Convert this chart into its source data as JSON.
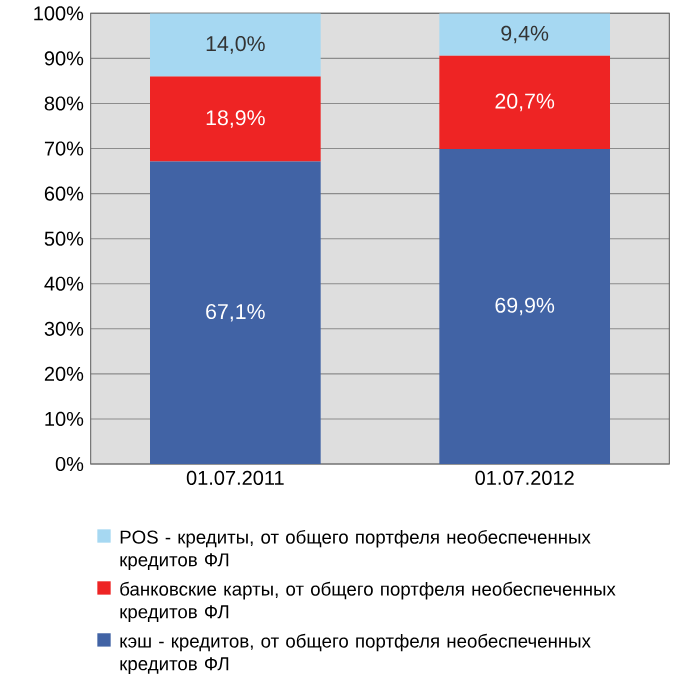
{
  "chart_data": {
    "type": "bar",
    "stacked": true,
    "categories": [
      "01.07.2011",
      "01.07.2012"
    ],
    "series": [
      {
        "name": "кэш - кредитов, от общего портфеля необеспеченных кредитов ФЛ",
        "color": "#4163a5",
        "values": [
          67.1,
          69.9
        ],
        "value_labels": [
          "67,1%",
          "69,9%"
        ]
      },
      {
        "name": "банковские карты, от общего портфеля необеспеченных кредитов ФЛ",
        "color": "#ee2424",
        "values": [
          18.9,
          20.7
        ],
        "value_labels": [
          "18,9%",
          "20,7%"
        ]
      },
      {
        "name": "POS - кредиты, от общего портфеля необеспеченных кредитов ФЛ",
        "color": "#a6d8f2",
        "values": [
          14.0,
          9.4
        ],
        "value_labels": [
          "14,0%",
          "9,4%"
        ]
      }
    ],
    "ylim": [
      0,
      100
    ],
    "yticks": [
      {
        "value": 0,
        "label": "0%"
      },
      {
        "value": 10,
        "label": "10%"
      },
      {
        "value": 20,
        "label": "20%"
      },
      {
        "value": 30,
        "label": "30%"
      },
      {
        "value": 40,
        "label": "40%"
      },
      {
        "value": 50,
        "label": "50%"
      },
      {
        "value": 60,
        "label": "60%"
      },
      {
        "value": 70,
        "label": "70%"
      },
      {
        "value": 80,
        "label": "80%"
      },
      {
        "value": 90,
        "label": "90%"
      },
      {
        "value": 100,
        "label": "100%"
      }
    ],
    "grid": "y",
    "legend": "bottom"
  }
}
